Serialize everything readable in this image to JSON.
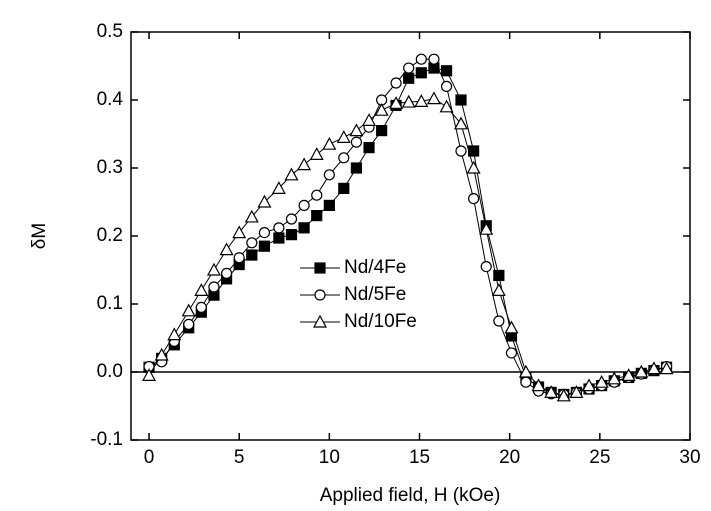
{
  "chart_data": {
    "type": "line",
    "xlabel": "Applied field, H (kOe)",
    "ylabel": "δM",
    "x": [
      0,
      0.7,
      1.4,
      2.2,
      2.9,
      3.6,
      4.3,
      5,
      5.7,
      6.4,
      7.2,
      7.9,
      8.6,
      9.3,
      10,
      10.8,
      11.5,
      12.2,
      12.9,
      13.7,
      14.4,
      15.1,
      15.8,
      16.5,
      17.3,
      18,
      18.7,
      19.4,
      20.1,
      20.9,
      21.6,
      22.3,
      23,
      23.7,
      24.4,
      25.1,
      25.8,
      26.6,
      27.3,
      28,
      28.7
    ],
    "series": [
      {
        "name": "Nd/4Fe",
        "color": "#000000",
        "marker": "square",
        "filled": true,
        "values": [
          0.007,
          0.02,
          0.04,
          0.065,
          0.088,
          0.113,
          0.137,
          0.158,
          0.172,
          0.185,
          0.197,
          0.202,
          0.212,
          0.23,
          0.245,
          0.27,
          0.3,
          0.33,
          0.355,
          0.392,
          0.432,
          0.44,
          0.447,
          0.443,
          0.4,
          0.325,
          0.215,
          0.142,
          0.053,
          -0.008,
          -0.022,
          -0.03,
          -0.033,
          -0.03,
          -0.025,
          -0.02,
          -0.013,
          -0.008,
          -0.002,
          0.002,
          0.007
        ]
      },
      {
        "name": "Nd/5Fe",
        "color": "#000000",
        "marker": "circle",
        "filled": false,
        "values": [
          0.008,
          0.015,
          0.045,
          0.07,
          0.095,
          0.125,
          0.145,
          0.168,
          0.19,
          0.205,
          0.212,
          0.225,
          0.245,
          0.26,
          0.29,
          0.315,
          0.338,
          0.36,
          0.4,
          0.425,
          0.447,
          0.46,
          0.46,
          0.42,
          0.325,
          0.255,
          0.155,
          0.075,
          0.028,
          -0.015,
          -0.028,
          -0.032,
          -0.033,
          -0.03,
          -0.025,
          -0.02,
          -0.015,
          -0.008,
          -0.003,
          0.003,
          0.008
        ]
      },
      {
        "name": "Nd/10Fe",
        "color": "#000000",
        "marker": "triangle",
        "filled": false,
        "values": [
          -0.005,
          0.025,
          0.055,
          0.09,
          0.12,
          0.15,
          0.18,
          0.205,
          0.228,
          0.25,
          0.27,
          0.29,
          0.305,
          0.32,
          0.335,
          0.345,
          0.355,
          0.37,
          0.385,
          0.395,
          0.397,
          0.398,
          0.402,
          0.39,
          0.365,
          0.3,
          0.21,
          0.12,
          0.065,
          0.0,
          -0.02,
          -0.03,
          -0.035,
          -0.03,
          -0.02,
          -0.015,
          -0.01,
          -0.005,
          0.0,
          0.005,
          0.005
        ]
      }
    ],
    "xlim": [
      -1,
      30
    ],
    "xticks": [
      0,
      5,
      10,
      15,
      20,
      25,
      30
    ],
    "ylim": [
      -0.1,
      0.5
    ],
    "yticks": [
      -0.1,
      {
        "value": 0,
        "label": "0.0"
      },
      0.1,
      0.2,
      0.3,
      0.4,
      0.5
    ],
    "zero_line": true,
    "legend": "center"
  }
}
